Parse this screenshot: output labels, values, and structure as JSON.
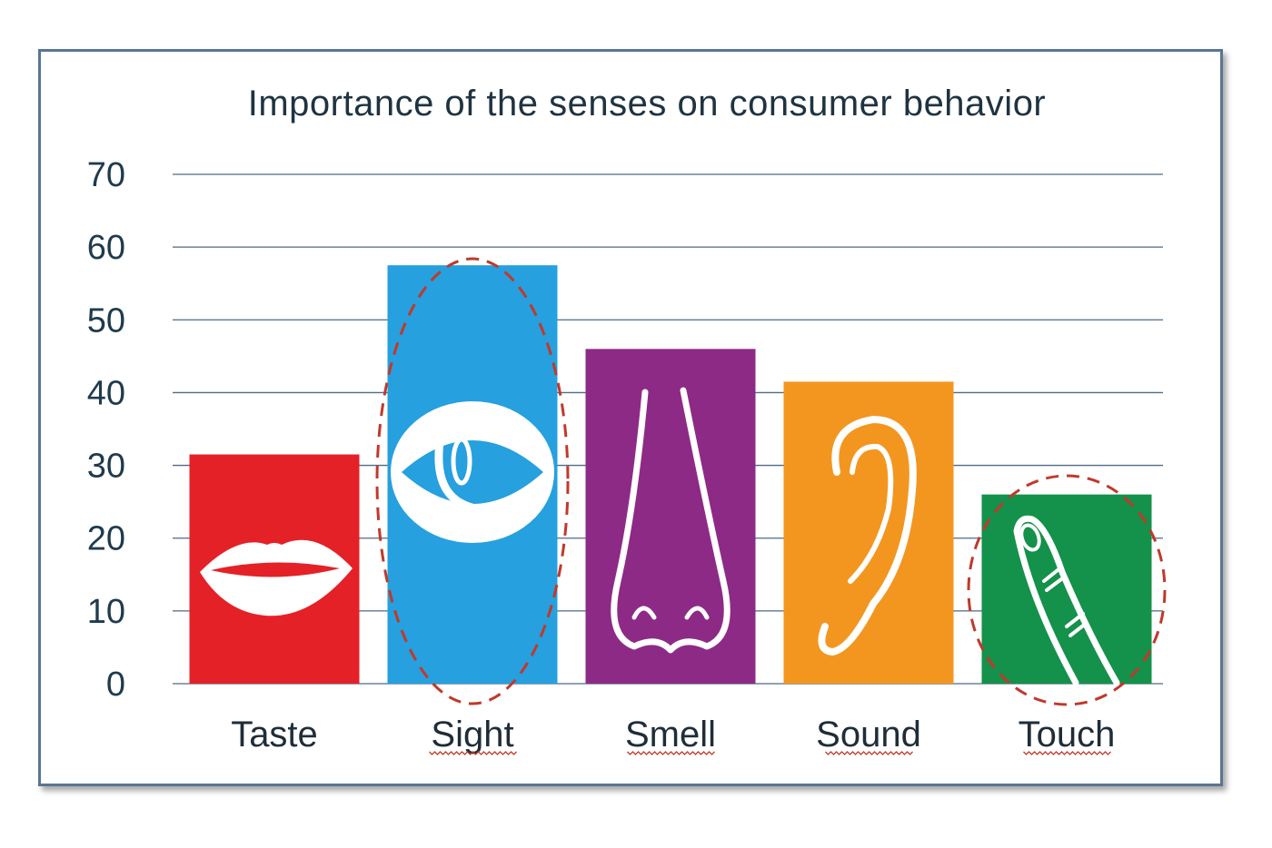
{
  "chart_data": {
    "type": "bar",
    "title": "Importance of the senses on consumer behavior",
    "categories": [
      "Taste",
      "Sight",
      "Smell",
      "Sound",
      "Touch"
    ],
    "values": [
      31.5,
      57.5,
      46,
      41.5,
      26
    ],
    "colors": [
      "#e42127",
      "#26a0de",
      "#8d2a86",
      "#f3961f",
      "#14914a"
    ],
    "icons": [
      "lips-icon",
      "eye-icon",
      "nose-icon",
      "ear-icon",
      "finger-icon"
    ],
    "highlighted": [
      "Sight",
      "Touch"
    ],
    "highlight_color": "#c0392b",
    "ylim": [
      0,
      70
    ],
    "yticks": [
      0,
      10,
      20,
      30,
      40,
      50,
      60,
      70
    ],
    "xlabel": "",
    "ylabel": "",
    "grid": true
  }
}
